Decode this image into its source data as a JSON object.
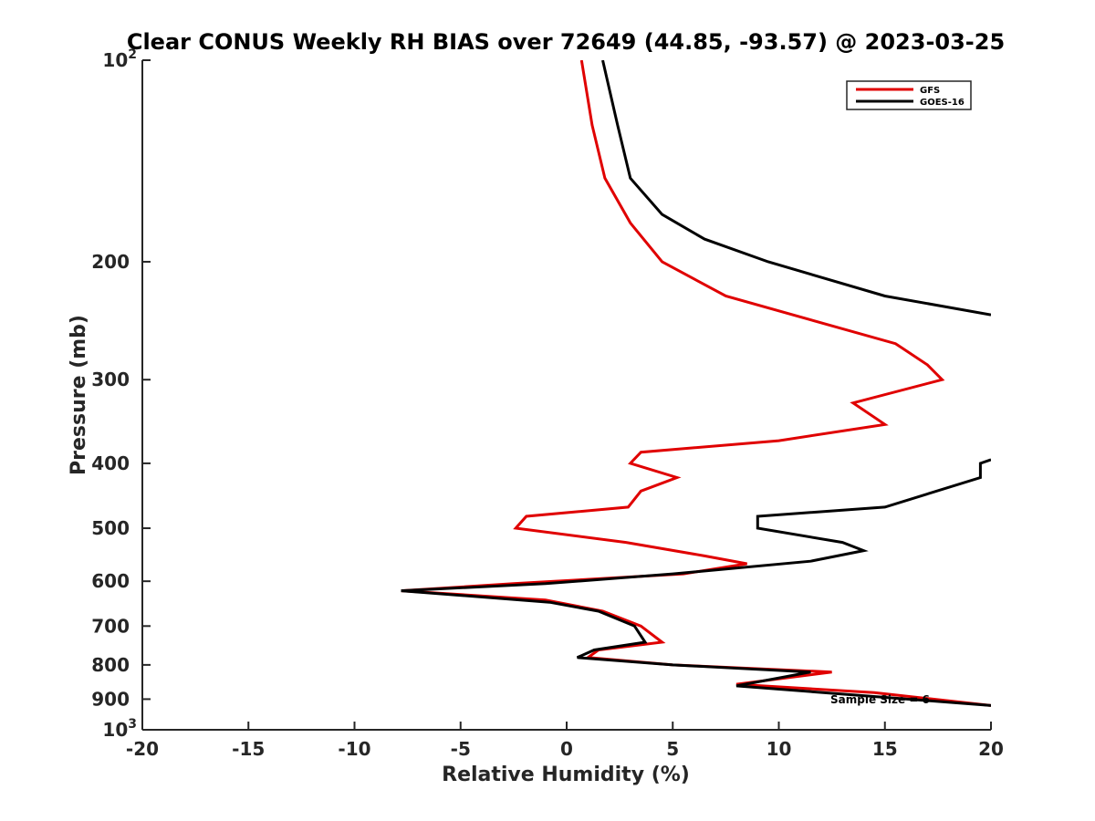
{
  "chart_data": {
    "type": "line",
    "title": "Clear CONUS Weekly RH BIAS over 72649 (44.85, -93.57) @ 2023-03-25",
    "xlabel": "Relative Humidity (%)",
    "ylabel": "Pressure (mb)",
    "xlim": [
      -20,
      20
    ],
    "ylim": [
      100,
      1000
    ],
    "y_scale": "log",
    "y_reversed": true,
    "grid": false,
    "legend_position": "top-right",
    "x_ticks": [
      "-20",
      "-15",
      "-10",
      "-5",
      "0",
      "5",
      "10",
      "15",
      "20"
    ],
    "y_ticks": [
      {
        "value": 100,
        "base": "10",
        "exp": "2"
      },
      {
        "value": 200,
        "label": "200"
      },
      {
        "value": 300,
        "label": "300"
      },
      {
        "value": 400,
        "label": "400"
      },
      {
        "value": 500,
        "label": "500"
      },
      {
        "value": 600,
        "label": "600"
      },
      {
        "value": 700,
        "label": "700"
      },
      {
        "value": 800,
        "label": "800"
      },
      {
        "value": 900,
        "label": "900"
      },
      {
        "value": 1000,
        "base": "10",
        "exp": "3"
      }
    ],
    "annotation": "Sample Size = 6",
    "series": [
      {
        "name": "GFS",
        "color": "#e00000",
        "points": [
          [
            0.7,
            100
          ],
          [
            1.2,
            125
          ],
          [
            1.8,
            150
          ],
          [
            3.0,
            175
          ],
          [
            4.5,
            200
          ],
          [
            7.5,
            225
          ],
          [
            15.5,
            265
          ],
          [
            17.0,
            285
          ],
          [
            17.7,
            300
          ],
          [
            13.5,
            325
          ],
          [
            15.0,
            350
          ],
          [
            10.0,
            370
          ],
          [
            3.5,
            385
          ],
          [
            3.0,
            400
          ],
          [
            5.2,
            420
          ],
          [
            3.5,
            440
          ],
          [
            2.9,
            465
          ],
          [
            -1.9,
            480
          ],
          [
            -2.4,
            500
          ],
          [
            2.8,
            525
          ],
          [
            6.5,
            550
          ],
          [
            8.5,
            565
          ],
          [
            5.5,
            585
          ],
          [
            -2.5,
            605
          ],
          [
            -7.8,
            620
          ],
          [
            -1.0,
            640
          ],
          [
            1.7,
            665
          ],
          [
            3.5,
            700
          ],
          [
            4.5,
            740
          ],
          [
            1.5,
            760
          ],
          [
            1.0,
            780
          ],
          [
            5.0,
            800
          ],
          [
            12.5,
            820
          ],
          [
            8.0,
            855
          ],
          [
            14.5,
            880
          ],
          [
            20.0,
            920
          ]
        ]
      },
      {
        "name": "GOES-16",
        "color": "#000000",
        "points": [
          [
            1.7,
            100
          ],
          [
            2.4,
            125
          ],
          [
            3.0,
            150
          ],
          [
            4.5,
            170
          ],
          [
            6.5,
            185
          ],
          [
            9.5,
            200
          ],
          [
            15.0,
            225
          ],
          [
            20.0,
            240
          ],
          null,
          [
            20.0,
            395
          ],
          [
            19.5,
            400
          ],
          [
            19.5,
            420
          ],
          [
            15.0,
            465
          ],
          [
            9.0,
            480
          ],
          [
            9.0,
            500
          ],
          [
            13.0,
            525
          ],
          [
            14.0,
            540
          ],
          [
            11.5,
            560
          ],
          [
            5.0,
            585
          ],
          [
            -1.0,
            605
          ],
          [
            -7.8,
            620
          ],
          [
            -0.8,
            645
          ],
          [
            1.5,
            665
          ],
          [
            3.2,
            700
          ],
          [
            3.7,
            740
          ],
          [
            1.3,
            760
          ],
          [
            0.5,
            780
          ],
          [
            5.0,
            800
          ],
          [
            11.5,
            820
          ],
          [
            8.0,
            860
          ],
          [
            20.0,
            920
          ]
        ]
      }
    ]
  }
}
